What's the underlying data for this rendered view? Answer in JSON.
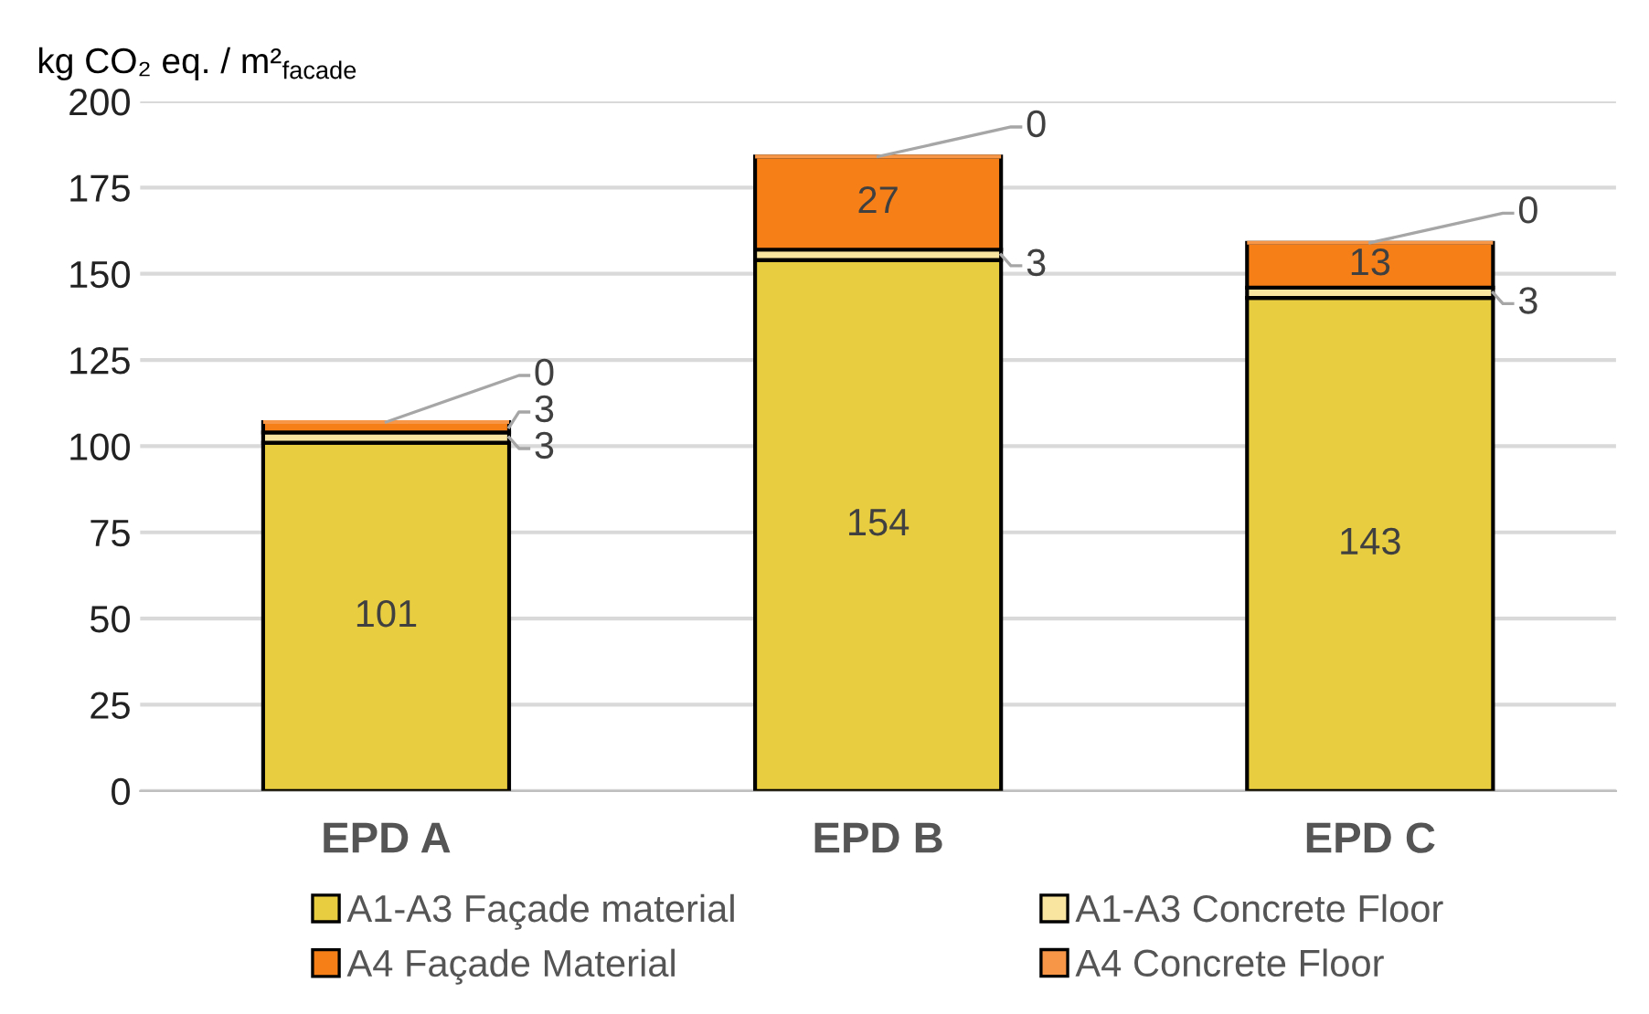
{
  "chart_data": {
    "type": "bar",
    "stacked": true,
    "ylabel": "kg CO₂ eq. / m²$_{facade}$",
    "categories": [
      "EPD A",
      "EPD B",
      "EPD C"
    ],
    "series": [
      {
        "name": "A1-A3 Façade material",
        "color": "#e8cd40",
        "values": [
          101,
          154,
          143
        ]
      },
      {
        "name": "A1-A3 Concrete Floor",
        "color": "#f9e5a0",
        "values": [
          3,
          3,
          3
        ]
      },
      {
        "name": "A4 Façade Material",
        "color": "#f77f17",
        "values": [
          3,
          27,
          13
        ]
      },
      {
        "name": "A4 Concrete Floor",
        "color": "#f79646",
        "values": [
          0,
          0,
          0
        ]
      }
    ],
    "ylim": [
      0,
      200
    ],
    "yticks": [
      0,
      25,
      50,
      75,
      100,
      125,
      150,
      175,
      200
    ],
    "grid": "y",
    "legend": "bottom",
    "data_labels": true
  }
}
